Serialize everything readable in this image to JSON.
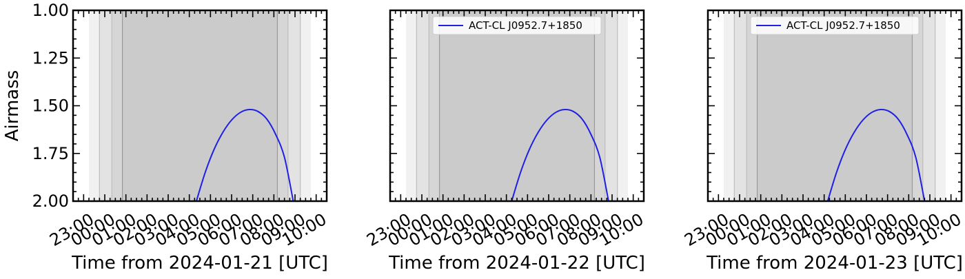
{
  "colors": {
    "curve": "#1f1fe6",
    "twilight_civil": "#f1f1f1",
    "twilight_nautical": "#e3e3e3",
    "twilight_astronomical": "#d6d6d6",
    "night": "#cbcbcb",
    "boundary_line": "#999999",
    "legend_border": "#cccccc"
  },
  "chart_data": [
    {
      "type": "line",
      "xlabel": "Time from 2024-01-21 [UTC]",
      "ylabel": "Airmass",
      "xlim": [
        "2024-01-21T22:30",
        "2024-01-22T10:30"
      ],
      "ylim": [
        2.0,
        1.0
      ],
      "y_inverted": true,
      "yticks": [
        "1.00",
        "1.25",
        "1.50",
        "1.75",
        "2.00"
      ],
      "xticks": [
        "23:00",
        "00:00",
        "01:00",
        "02:00",
        "03:00",
        "04:00",
        "05:00",
        "06:00",
        "07:00",
        "08:00",
        "09:00",
        "10:00"
      ],
      "show_yticklabels": true,
      "legend": null,
      "shading": [
        {
          "start": "2024-01-21T23:15",
          "end": "2024-01-22T09:45",
          "level": "civil"
        },
        {
          "start": "2024-01-21T23:45",
          "end": "2024-01-22T09:15",
          "level": "nautical"
        },
        {
          "start": "2024-01-22T00:20",
          "end": "2024-01-22T08:40",
          "level": "astronomical"
        },
        {
          "start": "2024-01-22T00:50",
          "end": "2024-01-22T08:10",
          "level": "night"
        }
      ],
      "series": [
        {
          "x": [
            "2024-01-22T04:20",
            "2024-01-22T04:45",
            "2024-01-22T05:10",
            "2024-01-22T05:35",
            "2024-01-22T06:00",
            "2024-01-22T06:25",
            "2024-01-22T06:50",
            "2024-01-22T07:15",
            "2024-01-22T07:40",
            "2024-01-22T08:05",
            "2024-01-22T08:30",
            "2024-01-22T08:55"
          ],
          "y": [
            2.0,
            1.85,
            1.73,
            1.64,
            1.575,
            1.535,
            1.52,
            1.53,
            1.57,
            1.65,
            1.77,
            2.0
          ]
        }
      ]
    },
    {
      "type": "line",
      "xlabel": "Time from 2024-01-22 [UTC]",
      "ylabel": "",
      "xlim": [
        "2024-01-22T22:30",
        "2024-01-23T10:30"
      ],
      "ylim": [
        2.0,
        1.0
      ],
      "y_inverted": true,
      "yticks": [
        "1.00",
        "1.25",
        "1.50",
        "1.75",
        "2.00"
      ],
      "xticks": [
        "23:00",
        "00:00",
        "01:00",
        "02:00",
        "03:00",
        "04:00",
        "05:00",
        "06:00",
        "07:00",
        "08:00",
        "09:00",
        "10:00"
      ],
      "show_yticklabels": false,
      "legend": {
        "placement": "top-center"
      },
      "shading": [
        {
          "start": "2024-01-22T23:15",
          "end": "2024-01-23T09:45",
          "level": "civil"
        },
        {
          "start": "2024-01-22T23:45",
          "end": "2024-01-23T09:15",
          "level": "nautical"
        },
        {
          "start": "2024-01-23T00:20",
          "end": "2024-01-23T08:40",
          "level": "astronomical"
        },
        {
          "start": "2024-01-23T00:50",
          "end": "2024-01-23T08:10",
          "level": "night"
        }
      ],
      "series": [
        {
          "name": "ACT-CL J0952.7+1850",
          "x": [
            "2024-01-23T04:15",
            "2024-01-23T04:40",
            "2024-01-23T05:05",
            "2024-01-23T05:30",
            "2024-01-23T05:55",
            "2024-01-23T06:20",
            "2024-01-23T06:45",
            "2024-01-23T07:10",
            "2024-01-23T07:35",
            "2024-01-23T08:00",
            "2024-01-23T08:25",
            "2024-01-23T08:50"
          ],
          "y": [
            2.0,
            1.85,
            1.73,
            1.64,
            1.575,
            1.535,
            1.52,
            1.53,
            1.57,
            1.65,
            1.77,
            2.0
          ]
        }
      ]
    },
    {
      "type": "line",
      "xlabel": "Time from 2024-01-23 [UTC]",
      "ylabel": "",
      "xlim": [
        "2024-01-23T22:30",
        "2024-01-24T10:30"
      ],
      "ylim": [
        2.0,
        1.0
      ],
      "y_inverted": true,
      "yticks": [
        "1.00",
        "1.25",
        "1.50",
        "1.75",
        "2.00"
      ],
      "xticks": [
        "23:00",
        "00:00",
        "01:00",
        "02:00",
        "03:00",
        "04:00",
        "05:00",
        "06:00",
        "07:00",
        "08:00",
        "09:00",
        "10:00"
      ],
      "show_yticklabels": false,
      "legend": {
        "placement": "top-center"
      },
      "shading": [
        {
          "start": "2024-01-23T23:15",
          "end": "2024-01-24T09:45",
          "level": "civil"
        },
        {
          "start": "2024-01-23T23:45",
          "end": "2024-01-24T09:15",
          "level": "nautical"
        },
        {
          "start": "2024-01-24T00:20",
          "end": "2024-01-24T08:40",
          "level": "astronomical"
        },
        {
          "start": "2024-01-24T00:50",
          "end": "2024-01-24T08:10",
          "level": "night"
        }
      ],
      "series": [
        {
          "name": "ACT-CL J0952.7+1850",
          "x": [
            "2024-01-24T04:10",
            "2024-01-24T04:35",
            "2024-01-24T05:00",
            "2024-01-24T05:25",
            "2024-01-24T05:50",
            "2024-01-24T06:15",
            "2024-01-24T06:40",
            "2024-01-24T07:05",
            "2024-01-24T07:30",
            "2024-01-24T07:55",
            "2024-01-24T08:20",
            "2024-01-24T08:45"
          ],
          "y": [
            2.0,
            1.85,
            1.73,
            1.64,
            1.575,
            1.535,
            1.52,
            1.53,
            1.57,
            1.65,
            1.77,
            2.0
          ]
        }
      ]
    }
  ]
}
